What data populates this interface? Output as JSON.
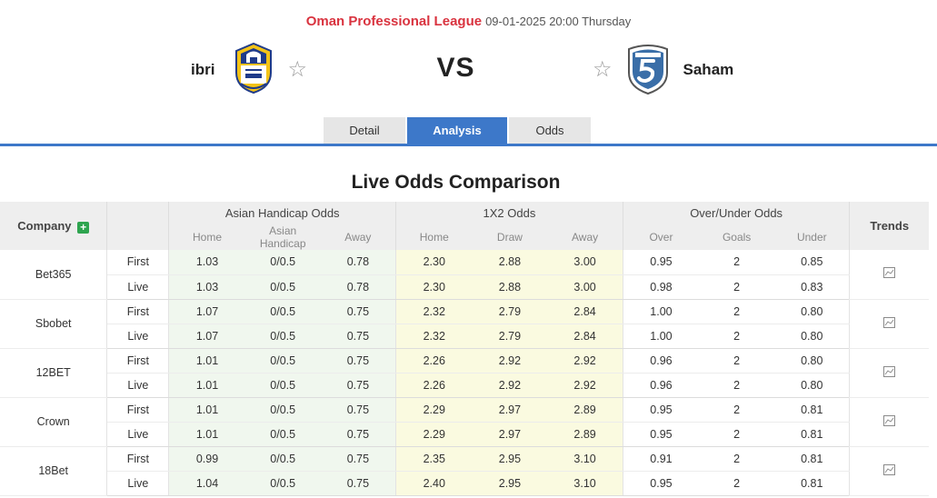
{
  "match": {
    "league": "Oman Professional League",
    "datetime": "09-01-2025 20:00 Thursday",
    "home_team": "ibri",
    "away_team": "Saham",
    "vs_label": "VS"
  },
  "tabs": [
    {
      "label": "Detail"
    },
    {
      "label": "Analysis"
    },
    {
      "label": "Odds"
    }
  ],
  "section_title": "Live Odds Comparison",
  "table": {
    "company_header": "Company",
    "trends_header": "Trends",
    "groups": [
      "Asian Handicap Odds",
      "1X2 Odds",
      "Over/Under Odds"
    ],
    "subheaders": [
      "Home",
      "Asian Handicap",
      "Away",
      "Home",
      "Draw",
      "Away",
      "Over",
      "Goals",
      "Under"
    ],
    "kinds": [
      "First",
      "Live"
    ],
    "companies": [
      {
        "name": "Bet365",
        "first": [
          "1.03",
          "0/0.5",
          "0.78",
          "2.30",
          "2.88",
          "3.00",
          "0.95",
          "2",
          "0.85"
        ],
        "live": [
          "1.03",
          "0/0.5",
          "0.78",
          "2.30",
          "2.88",
          "3.00",
          "0.98",
          "2",
          "0.83"
        ]
      },
      {
        "name": "Sbobet",
        "first": [
          "1.07",
          "0/0.5",
          "0.75",
          "2.32",
          "2.79",
          "2.84",
          "1.00",
          "2",
          "0.80"
        ],
        "live": [
          "1.07",
          "0/0.5",
          "0.75",
          "2.32",
          "2.79",
          "2.84",
          "1.00",
          "2",
          "0.80"
        ]
      },
      {
        "name": "12BET",
        "first": [
          "1.01",
          "0/0.5",
          "0.75",
          "2.26",
          "2.92",
          "2.92",
          "0.96",
          "2",
          "0.80"
        ],
        "live": [
          "1.01",
          "0/0.5",
          "0.75",
          "2.26",
          "2.92",
          "2.92",
          "0.96",
          "2",
          "0.80"
        ]
      },
      {
        "name": "Crown",
        "first": [
          "1.01",
          "0/0.5",
          "0.75",
          "2.29",
          "2.97",
          "2.89",
          "0.95",
          "2",
          "0.81"
        ],
        "live": [
          "1.01",
          "0/0.5",
          "0.75",
          "2.29",
          "2.97",
          "2.89",
          "0.95",
          "2",
          "0.81"
        ]
      },
      {
        "name": "18Bet",
        "first": [
          "0.99",
          "0/0.5",
          "0.75",
          "2.35",
          "2.95",
          "3.10",
          "0.91",
          "2",
          "0.81"
        ],
        "live": [
          "1.04",
          "0/0.5",
          "0.75",
          "2.40",
          "2.95",
          "3.10",
          "0.95",
          "2",
          "0.81"
        ]
      }
    ]
  },
  "icons": {
    "favorite": "star-outline-icon",
    "add": "plus-icon",
    "trend": "trend-chart-icon"
  },
  "colors": {
    "league": "#d9333f",
    "accent": "#3d78c9",
    "ah_bg": "#f0f7ee",
    "x12_bg": "#fafae0"
  }
}
